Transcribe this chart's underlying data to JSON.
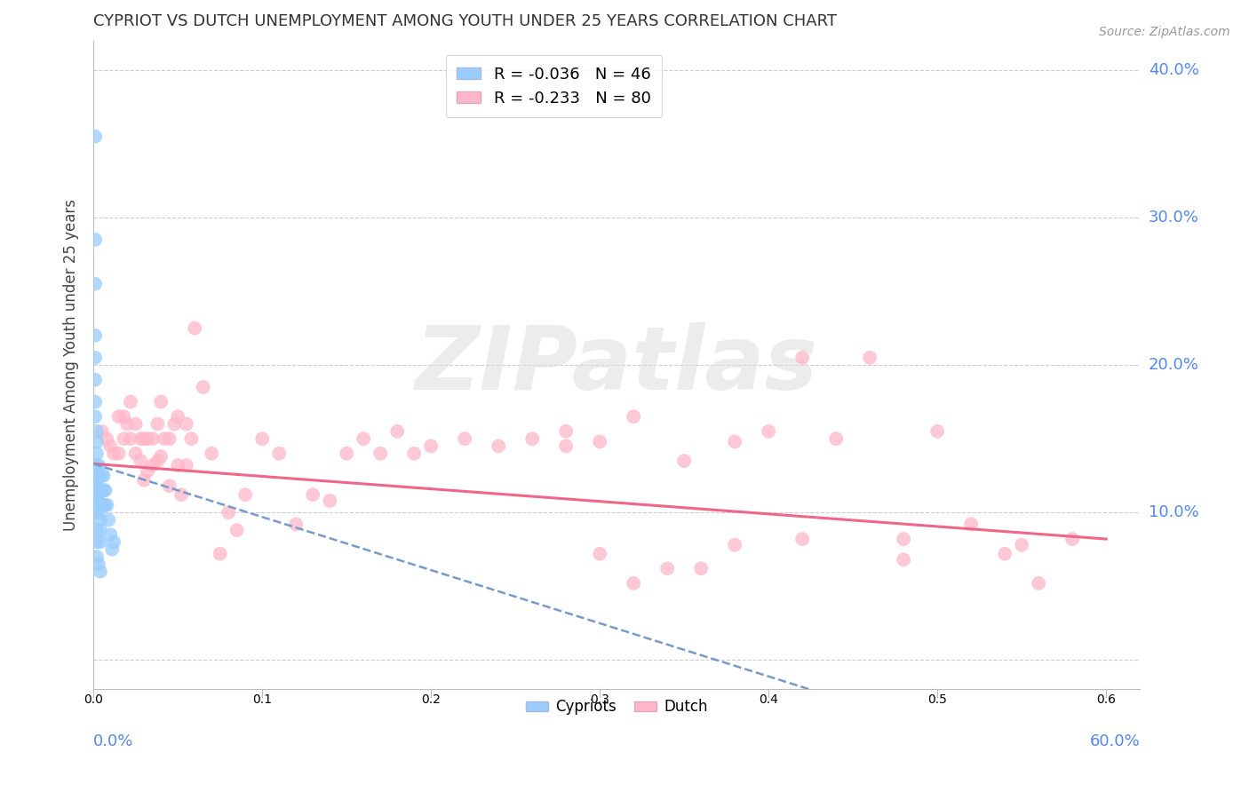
{
  "title": "CYPRIOT VS DUTCH UNEMPLOYMENT AMONG YOUTH UNDER 25 YEARS CORRELATION CHART",
  "source": "Source: ZipAtlas.com",
  "ylabel": "Unemployment Among Youth under 25 years",
  "xlim": [
    0.0,
    0.62
  ],
  "ylim": [
    -0.02,
    0.42
  ],
  "yticks": [
    0.0,
    0.1,
    0.2,
    0.3,
    0.4
  ],
  "ytick_labels": [
    "",
    "10.0%",
    "20.0%",
    "30.0%",
    "40.0%"
  ],
  "ytick_color": "#5588ee",
  "legend_line1": "R = -0.036   N = 46",
  "legend_line2": "R = -0.233   N = 80",
  "cypriot_color": "#99CCFF",
  "dutch_color": "#FFB6C8",
  "cypriot_line_color": "#7799CC",
  "dutch_line_color": "#EE6688",
  "watermark": "ZIPatlas",
  "background_color": "#ffffff",
  "grid_color": "#cccccc",
  "grid_style": "--",
  "cypriot_x": [
    0.001,
    0.001,
    0.001,
    0.001,
    0.001,
    0.001,
    0.001,
    0.001,
    0.002,
    0.002,
    0.002,
    0.002,
    0.002,
    0.002,
    0.002,
    0.003,
    0.003,
    0.003,
    0.003,
    0.003,
    0.004,
    0.004,
    0.004,
    0.005,
    0.005,
    0.005,
    0.006,
    0.006,
    0.006,
    0.007,
    0.007,
    0.008,
    0.009,
    0.01,
    0.011,
    0.012,
    0.001,
    0.001,
    0.001,
    0.001,
    0.001,
    0.002,
    0.002,
    0.002,
    0.003,
    0.004
  ],
  "cypriot_y": [
    0.355,
    0.285,
    0.255,
    0.22,
    0.205,
    0.19,
    0.175,
    0.165,
    0.155,
    0.148,
    0.14,
    0.132,
    0.125,
    0.118,
    0.11,
    0.132,
    0.125,
    0.115,
    0.108,
    0.1,
    0.095,
    0.088,
    0.08,
    0.125,
    0.115,
    0.105,
    0.125,
    0.115,
    0.105,
    0.115,
    0.105,
    0.105,
    0.095,
    0.085,
    0.075,
    0.08,
    0.13,
    0.122,
    0.115,
    0.108,
    0.1,
    0.088,
    0.08,
    0.07,
    0.065,
    0.06
  ],
  "dutch_x": [
    0.005,
    0.008,
    0.01,
    0.012,
    0.015,
    0.015,
    0.018,
    0.018,
    0.02,
    0.022,
    0.022,
    0.025,
    0.025,
    0.028,
    0.028,
    0.03,
    0.03,
    0.032,
    0.032,
    0.035,
    0.035,
    0.038,
    0.038,
    0.04,
    0.04,
    0.042,
    0.045,
    0.045,
    0.048,
    0.05,
    0.05,
    0.052,
    0.055,
    0.055,
    0.058,
    0.06,
    0.065,
    0.07,
    0.075,
    0.08,
    0.085,
    0.09,
    0.1,
    0.11,
    0.12,
    0.13,
    0.14,
    0.15,
    0.16,
    0.17,
    0.18,
    0.19,
    0.2,
    0.22,
    0.24,
    0.26,
    0.28,
    0.3,
    0.32,
    0.34,
    0.36,
    0.38,
    0.4,
    0.42,
    0.44,
    0.46,
    0.48,
    0.5,
    0.52,
    0.54,
    0.56,
    0.58,
    0.28,
    0.32,
    0.35,
    0.42,
    0.48,
    0.55,
    0.38,
    0.3
  ],
  "dutch_y": [
    0.155,
    0.15,
    0.145,
    0.14,
    0.165,
    0.14,
    0.165,
    0.15,
    0.16,
    0.175,
    0.15,
    0.16,
    0.14,
    0.15,
    0.135,
    0.15,
    0.122,
    0.15,
    0.128,
    0.15,
    0.132,
    0.16,
    0.135,
    0.175,
    0.138,
    0.15,
    0.15,
    0.118,
    0.16,
    0.165,
    0.132,
    0.112,
    0.16,
    0.132,
    0.15,
    0.225,
    0.185,
    0.14,
    0.072,
    0.1,
    0.088,
    0.112,
    0.15,
    0.14,
    0.092,
    0.112,
    0.108,
    0.14,
    0.15,
    0.14,
    0.155,
    0.14,
    0.145,
    0.15,
    0.145,
    0.15,
    0.155,
    0.072,
    0.052,
    0.062,
    0.062,
    0.078,
    0.155,
    0.205,
    0.15,
    0.205,
    0.068,
    0.155,
    0.092,
    0.072,
    0.052,
    0.082,
    0.145,
    0.165,
    0.135,
    0.082,
    0.082,
    0.078,
    0.148,
    0.148
  ]
}
